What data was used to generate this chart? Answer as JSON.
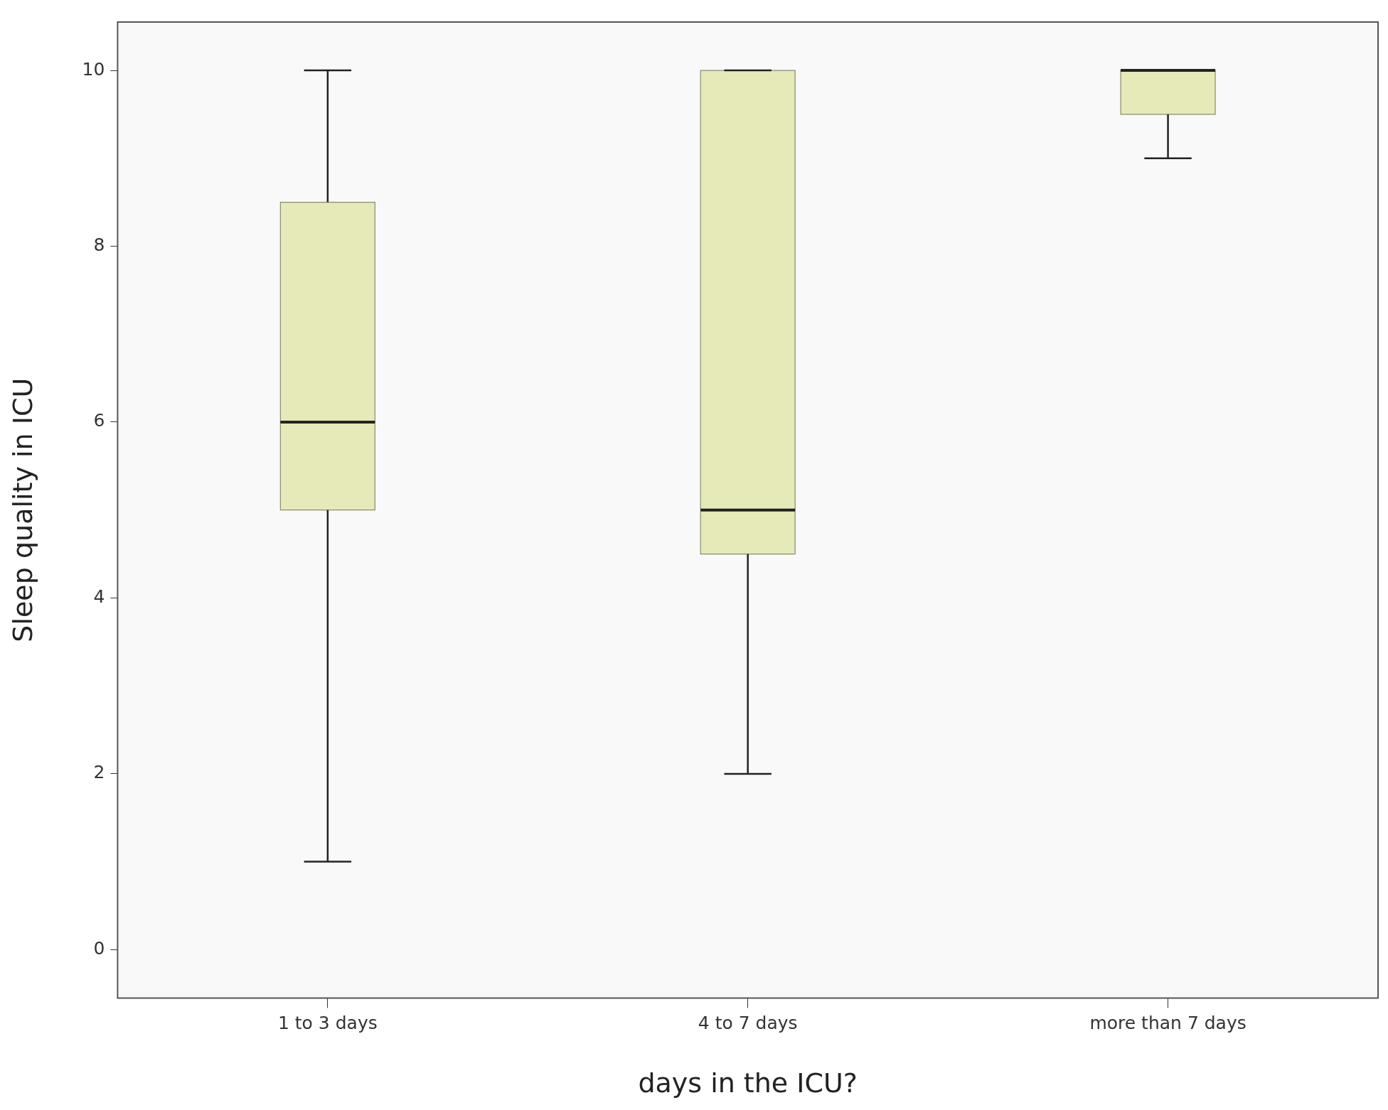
{
  "chart_data": {
    "type": "box",
    "xlabel": "days in the ICU?",
    "ylabel": "Sleep quality in ICU",
    "categories": [
      "1 to 3 days",
      "4 to 7 days",
      "more than 7 days"
    ],
    "series": [
      {
        "color": "#e6eab8",
        "boxes": [
          {
            "low": 1,
            "q1": 5,
            "median": 6,
            "q3": 8.5,
            "high": 10
          },
          {
            "low": 2,
            "q1": 4.5,
            "median": 5,
            "q3": 10,
            "high": 10
          },
          {
            "low": 9,
            "q1": 9.5,
            "median": 10,
            "q3": 10,
            "high": 10
          }
        ]
      }
    ],
    "ylim": [
      -0.55,
      10.55
    ],
    "yticks": [
      0,
      2,
      4,
      6,
      8,
      10
    ],
    "grid": false,
    "legend": false
  }
}
